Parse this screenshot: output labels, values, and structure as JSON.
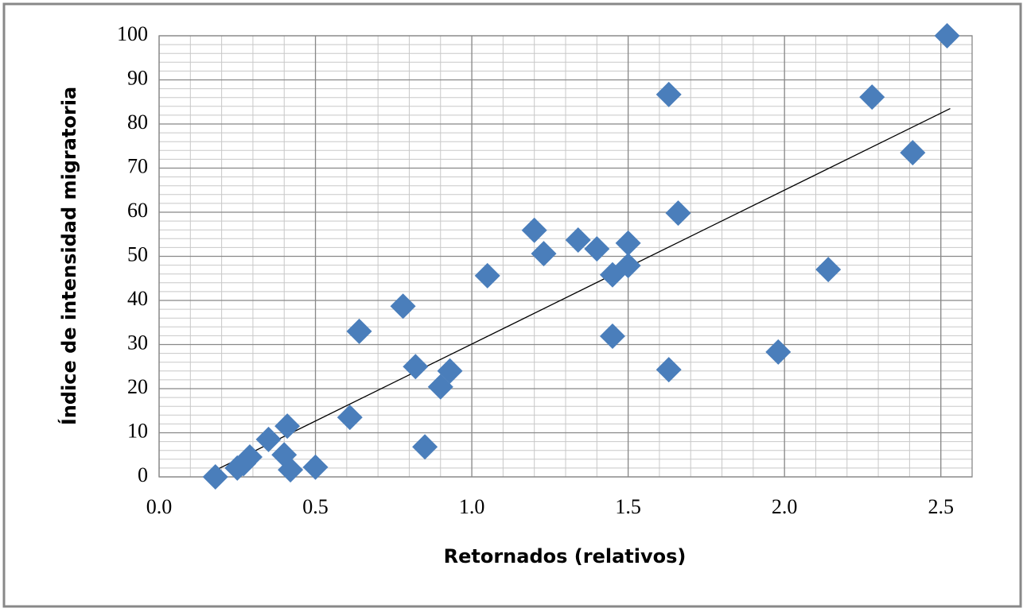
{
  "chart_data": {
    "type": "scatter",
    "x_label": "Retornados (relativos)",
    "y_label": "Índice de intensidad migratoria",
    "series": [
      {
        "color": "#4a7ebb",
        "x": [
          0.18,
          0.25,
          0.27,
          0.29,
          0.35,
          0.41,
          0.4,
          0.42,
          0.5,
          0.61,
          0.64,
          0.78,
          0.82,
          0.85,
          0.9,
          0.93,
          1.05,
          1.2,
          1.23,
          1.34,
          1.4,
          1.45,
          1.5,
          1.5,
          1.45,
          1.63,
          1.66,
          1.63,
          1.98,
          2.14,
          2.28,
          2.41,
          2.52
        ],
        "values": [
          0,
          2,
          3,
          4.5,
          8.5,
          11.5,
          5,
          1.6,
          2.2,
          13.5,
          33,
          38.7,
          25,
          6.8,
          20.4,
          24,
          45.6,
          55.9,
          50.6,
          53.7,
          51.7,
          45.8,
          47.9,
          53,
          31.9,
          86.7,
          59.8,
          24.3,
          28.3,
          47,
          86.1,
          73.5,
          100
        ]
      }
    ],
    "trendline": {
      "color": "#000000",
      "x": [
        0.18,
        2.53
      ],
      "values": [
        1.5,
        83.5
      ]
    },
    "xlim": [
      0,
      2.6
    ],
    "ylim": [
      0,
      100
    ],
    "xticks": [
      {
        "value": 0,
        "label": "0.0"
      },
      0.5,
      {
        "value": 1,
        "label": "1.0"
      },
      1.5,
      {
        "value": 2,
        "label": "2.0"
      },
      2.5
    ],
    "yticks": [
      0,
      10,
      20,
      30,
      40,
      50,
      60,
      70,
      80,
      90,
      100
    ],
    "grid": true,
    "minor_grid_step": {
      "x": 0.1,
      "y": 2
    }
  }
}
